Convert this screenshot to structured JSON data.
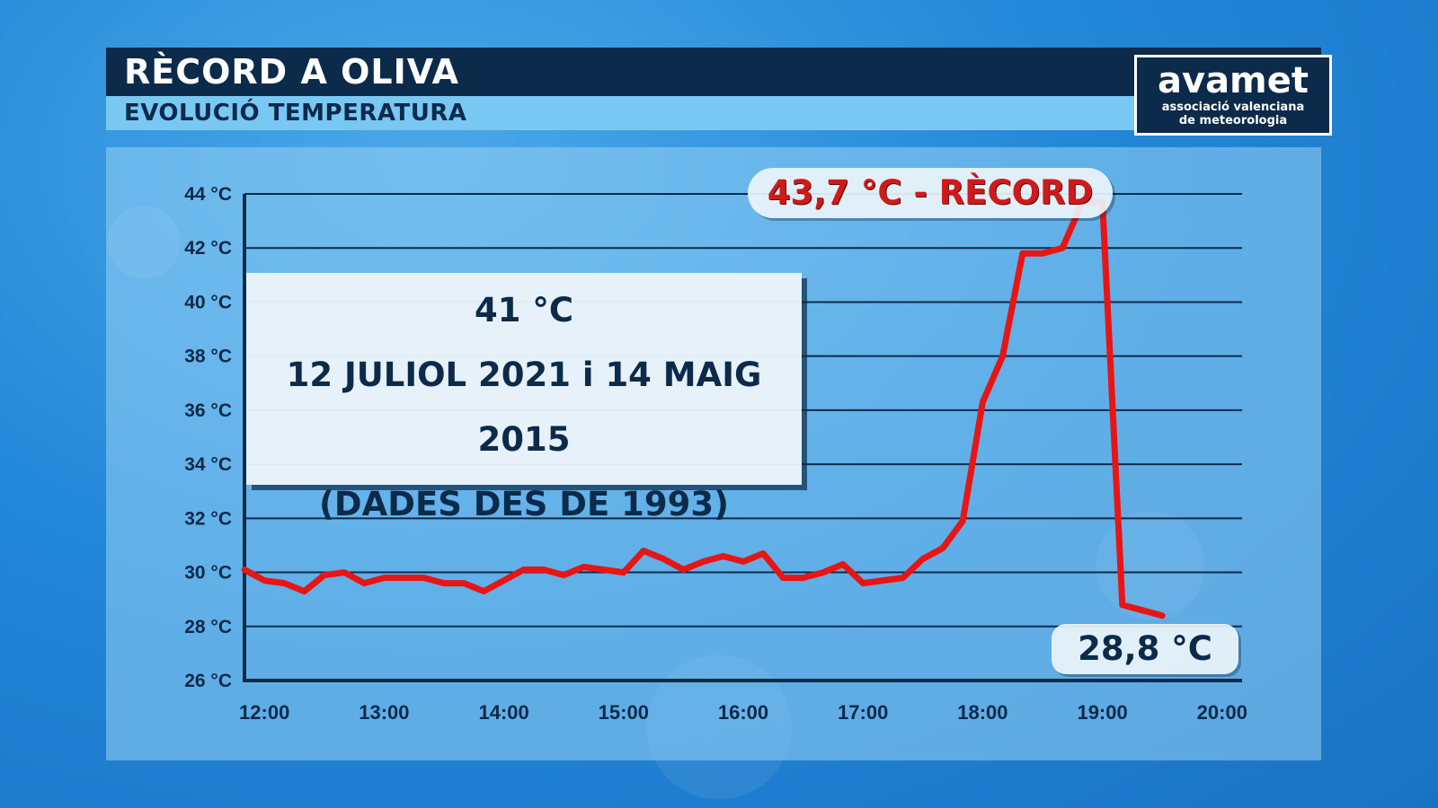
{
  "header": {
    "title": "RÈCORD A OLIVA",
    "subtitle": "EVOLUCIÓ TEMPERATURA"
  },
  "logo": {
    "name": "avamet",
    "line1": "associació valenciana",
    "line2": "de meteorologia"
  },
  "info_box": {
    "line1": "41 °C",
    "line2": "12 JULIOL 2021 i 14 MAIG 2015",
    "line3": "(DADES DES DE 1993)"
  },
  "callouts": {
    "record": "43,7 °C - RÈCORD",
    "end": "28,8 °C"
  },
  "colors": {
    "header_dark": "#0c2a4a",
    "header_light": "#79c8f4",
    "line": "#e81515",
    "axis": "#0c2a4a"
  },
  "chart_data": {
    "type": "line",
    "title": "RÈCORD A OLIVA",
    "subtitle": "EVOLUCIÓ TEMPERATURA",
    "xlabel": "",
    "ylabel": "",
    "x_unit": "time of day",
    "y_unit": "°C",
    "ylim": [
      26,
      44
    ],
    "xlim": [
      "11:50",
      "20:10"
    ],
    "grid": true,
    "y_ticks": [
      26,
      28,
      30,
      32,
      34,
      36,
      38,
      40,
      42,
      44
    ],
    "y_tick_labels": [
      "26 °C",
      "28 °C",
      "30 °C",
      "32 °C",
      "34 °C",
      "36 °C",
      "38 °C",
      "40 °C",
      "42 °C",
      "44 °C"
    ],
    "x_tick_labels": [
      "12:00",
      "13:00",
      "14:00",
      "15:00",
      "16:00",
      "17:00",
      "18:00",
      "19:00",
      "20:00"
    ],
    "series": [
      {
        "color": "#e81515",
        "x": [
          "11:50",
          "12:00",
          "12:10",
          "12:20",
          "12:30",
          "12:40",
          "12:50",
          "13:00",
          "13:10",
          "13:20",
          "13:30",
          "13:40",
          "13:50",
          "14:00",
          "14:10",
          "14:20",
          "14:30",
          "14:40",
          "14:50",
          "15:00",
          "15:10",
          "15:20",
          "15:30",
          "15:40",
          "15:50",
          "16:00",
          "16:10",
          "16:20",
          "16:30",
          "16:40",
          "16:50",
          "17:00",
          "17:10",
          "17:20",
          "17:30",
          "17:40",
          "17:50",
          "18:00",
          "18:10",
          "18:20",
          "18:30",
          "18:40",
          "18:50",
          "19:00",
          "19:10",
          "19:20",
          "19:30",
          "19:40",
          "19:50",
          "20:00",
          "20:10"
        ],
        "values": [
          30.1,
          29.7,
          29.6,
          29.3,
          29.9,
          30.0,
          29.6,
          29.8,
          29.8,
          29.8,
          29.6,
          29.6,
          29.3,
          29.7,
          30.1,
          30.1,
          29.9,
          30.2,
          30.1,
          30.0,
          30.8,
          30.5,
          30.1,
          30.4,
          30.6,
          30.4,
          30.7,
          29.8,
          29.8,
          30.0,
          30.3,
          29.6,
          29.7,
          29.8,
          30.5,
          30.9,
          31.9,
          36.3,
          38.0,
          41.8,
          41.8,
          42.0,
          43.7,
          43.7,
          28.8,
          28.6,
          28.4,
          null,
          null,
          null,
          null
        ]
      }
    ]
  }
}
